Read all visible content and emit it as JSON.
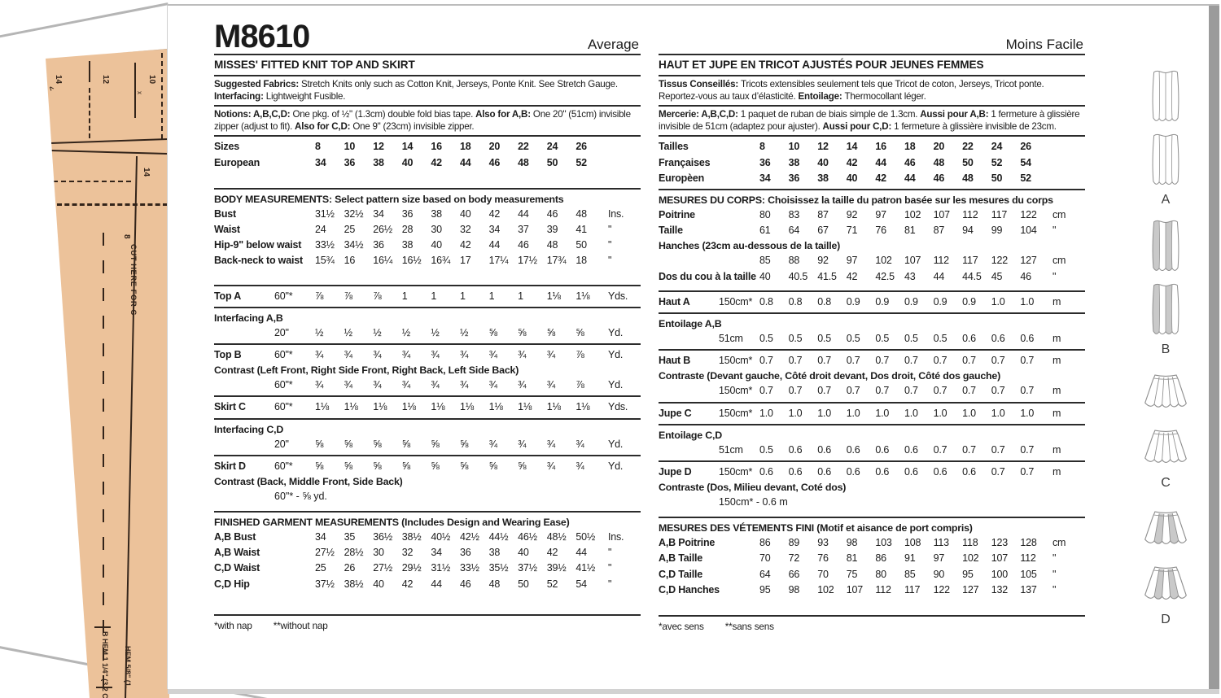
{
  "colors": {
    "tissue": "#ecc29a",
    "edge_gray": "#9b9b9b",
    "contrast_gray": "#c9c9c9",
    "ink": "#1b1b1b",
    "line_gray": "#8f8f8f"
  },
  "tissue": {
    "marks": {
      "n14a": "14",
      "n12": "12",
      "n10": "10",
      "n14b": "14",
      "n8": "8",
      "caret": "<",
      "xmark": "x"
    },
    "cut_line": "CUT HERE FOR C",
    "hem_b": "B HEM 1 1/4\" (3.2 C",
    "hem_c": "HEM 5/8\" (1."
  },
  "english": {
    "blocks": [
      {
        "t": "head",
        "big": "M8610",
        "right": "Average"
      },
      {
        "t": "rule"
      },
      {
        "t": "lbl",
        "lg": 1,
        "text": "MISSES' FITTED KNIT TOP AND SKIRT",
        "n": "garment-title-en"
      },
      {
        "t": "rule"
      },
      {
        "t": "p",
        "n": "fabrics-text-en",
        "seg": [
          [
            "b",
            "Suggested Fabrics: "
          ],
          [
            "r",
            "Stretch Knits only such as Cotton Knit, Jerseys, Ponte Knit. See Stretch Gauge."
          ],
          [
            "br"
          ],
          [
            "b",
            "Interfacing: "
          ],
          [
            "r",
            "Lightweight Fusible."
          ]
        ]
      },
      {
        "t": "rule"
      },
      {
        "t": "p",
        "n": "notions-text-en",
        "seg": [
          [
            "b",
            "Notions: A,B,C,D: "
          ],
          [
            "r",
            "One pkg. of ½\" (1.3cm) double fold bias tape. "
          ],
          [
            "b",
            "Also for A,B: "
          ],
          [
            "r",
            "One 20\" (51cm) invisible zipper (adjust to fit). "
          ],
          [
            "b",
            "Also for C,D: "
          ],
          [
            "r",
            "One 9\" (23cm) invisible zipper."
          ]
        ]
      },
      {
        "t": "rule"
      },
      {
        "t": "row",
        "span": 1,
        "bv": 1,
        "label": "Sizes",
        "vals": [
          "8",
          "10",
          "12",
          "14",
          "16",
          "18",
          "20",
          "22",
          "24",
          "26"
        ],
        "unit": ""
      },
      {
        "t": "row",
        "span": 1,
        "bv": 1,
        "label": "European",
        "vals": [
          "34",
          "36",
          "38",
          "40",
          "42",
          "44",
          "46",
          "48",
          "50",
          "52"
        ],
        "unit": ""
      },
      {
        "t": "gap",
        "h": 18
      },
      {
        "t": "rule"
      },
      {
        "t": "lbl",
        "text": "BODY MEASUREMENTS: Select pattern size based on body measurements",
        "n": "body-measurements-heading-en"
      },
      {
        "t": "row",
        "span": 1,
        "label": "Bust",
        "vals": [
          "31½",
          "32½",
          "34",
          "36",
          "38",
          "40",
          "42",
          "44",
          "46",
          "48"
        ],
        "unit": "Ins."
      },
      {
        "t": "row",
        "span": 1,
        "label": "Waist",
        "vals": [
          "24",
          "25",
          "26½",
          "28",
          "30",
          "32",
          "34",
          "37",
          "39",
          "41"
        ],
        "unit": "\""
      },
      {
        "t": "row",
        "span": 1,
        "label": "Hip-9\" below waist",
        "vals": [
          "33½",
          "34½",
          "36",
          "38",
          "40",
          "42",
          "44",
          "46",
          "48",
          "50"
        ],
        "unit": "\""
      },
      {
        "t": "row",
        "span": 1,
        "label": "Back-neck to waist",
        "vals": [
          "15¾",
          "16",
          "16¼",
          "16½",
          "16¾",
          "17",
          "17¼",
          "17½",
          "17¾",
          "18"
        ],
        "unit": "\""
      },
      {
        "t": "gap",
        "h": 16
      },
      {
        "t": "rule"
      },
      {
        "t": "row",
        "label": "Top A",
        "w": "60\"*",
        "vals": [
          "⅞",
          "⅞",
          "⅞",
          "1",
          "1",
          "1",
          "1",
          "1",
          "1⅛",
          "1⅛"
        ],
        "unit": "Yds."
      },
      {
        "t": "rule"
      },
      {
        "t": "lbl",
        "text": "Interfacing A,B"
      },
      {
        "t": "row",
        "label": "",
        "w": "20\"",
        "vals": [
          "½",
          "½",
          "½",
          "½",
          "½",
          "½",
          "⅝",
          "⅝",
          "⅝",
          "⅝"
        ],
        "unit": "Yd."
      },
      {
        "t": "rule"
      },
      {
        "t": "row",
        "label": "Top B",
        "w": "60\"*",
        "vals": [
          "¾",
          "¾",
          "¾",
          "¾",
          "¾",
          "¾",
          "¾",
          "¾",
          "¾",
          "⅞"
        ],
        "unit": "Yd."
      },
      {
        "t": "lbl",
        "text": "Contrast (Left Front, Right Side Front, Right Back, Left Side Back)"
      },
      {
        "t": "row",
        "label": "",
        "w": "60\"*",
        "vals": [
          "¾",
          "¾",
          "¾",
          "¾",
          "¾",
          "¾",
          "¾",
          "¾",
          "¾",
          "⅞"
        ],
        "unit": "Yd."
      },
      {
        "t": "rule"
      },
      {
        "t": "row",
        "label": "Skirt C",
        "w": "60\"*",
        "vals": [
          "1⅛",
          "1⅛",
          "1⅛",
          "1⅛",
          "1⅛",
          "1⅛",
          "1⅛",
          "1⅛",
          "1⅛",
          "1⅛"
        ],
        "unit": "Yds."
      },
      {
        "t": "rule"
      },
      {
        "t": "lbl",
        "text": "Interfacing C,D"
      },
      {
        "t": "row",
        "label": "",
        "w": "20\"",
        "vals": [
          "⅝",
          "⅝",
          "⅝",
          "⅝",
          "⅝",
          "⅝",
          "¾",
          "¾",
          "¾",
          "¾"
        ],
        "unit": "Yd."
      },
      {
        "t": "rule"
      },
      {
        "t": "row",
        "label": "Skirt D",
        "w": "60\"*",
        "vals": [
          "⅝",
          "⅝",
          "⅝",
          "⅝",
          "⅝",
          "⅝",
          "⅝",
          "⅝",
          "¾",
          "¾"
        ],
        "unit": "Yd."
      },
      {
        "t": "lbl",
        "text": "Contrast (Back, Middle Front, Side Back)"
      },
      {
        "t": "free",
        "text": "60\"* - ⅝ yd."
      },
      {
        "t": "gap",
        "h": 6
      },
      {
        "t": "rule"
      },
      {
        "t": "lbl",
        "text": "FINISHED GARMENT MEASUREMENTS (Includes Design and Wearing Ease)",
        "n": "finished-measurements-heading-en"
      },
      {
        "t": "row",
        "span": 1,
        "label": "A,B Bust",
        "vals": [
          "34",
          "35",
          "36½",
          "38½",
          "40½",
          "42½",
          "44½",
          "46½",
          "48½",
          "50½"
        ],
        "unit": "Ins."
      },
      {
        "t": "row",
        "span": 1,
        "label": "A,B Waist",
        "vals": [
          "27½",
          "28½",
          "30",
          "32",
          "34",
          "36",
          "38",
          "40",
          "42",
          "44"
        ],
        "unit": "\""
      },
      {
        "t": "row",
        "span": 1,
        "label": "C,D Waist",
        "vals": [
          "25",
          "26",
          "27½",
          "29½",
          "31½",
          "33½",
          "35½",
          "37½",
          "39½",
          "41½"
        ],
        "unit": "\""
      },
      {
        "t": "row",
        "span": 1,
        "label": "C,D Hip",
        "vals": [
          "37½",
          "38½",
          "40",
          "42",
          "44",
          "46",
          "48",
          "50",
          "52",
          "54"
        ],
        "unit": "\""
      },
      {
        "t": "gap",
        "h": 24
      },
      {
        "t": "rule"
      },
      {
        "t": "note",
        "parts": [
          "*with nap",
          "**without nap"
        ]
      }
    ]
  },
  "french": {
    "blocks": [
      {
        "t": "head",
        "big": "",
        "right": "Moins Facile"
      },
      {
        "t": "rule"
      },
      {
        "t": "lbl",
        "lg": 1,
        "text": "HAUT ET JUPE EN TRICOT AJUSTÉS POUR JEUNES FEMMES",
        "n": "garment-title-fr"
      },
      {
        "t": "rule"
      },
      {
        "t": "p",
        "n": "fabrics-text-fr",
        "seg": [
          [
            "b",
            "Tissus Conseillés: "
          ],
          [
            "r",
            "Tricots extensibles seulement tels que Tricot de coton, Jerseys, Tricot ponte. Reportez-vous au taux d’élasticité. "
          ],
          [
            "b",
            "Entoilage: "
          ],
          [
            "r",
            "Thermocollant léger."
          ]
        ]
      },
      {
        "t": "rule"
      },
      {
        "t": "p",
        "n": "notions-text-fr",
        "seg": [
          [
            "b",
            "Mercerie: A,B,C,D: "
          ],
          [
            "r",
            "1 paquet de ruban de biais simple de 1.3cm. "
          ],
          [
            "b",
            "Aussi pour A,B: "
          ],
          [
            "r",
            "1 fermeture à glissière invisible de 51cm (adaptez pour ajuster). "
          ],
          [
            "b",
            "Aussi pour C,D: "
          ],
          [
            "r",
            "1 fermeture à glissière invisible de 23cm."
          ]
        ]
      },
      {
        "t": "rule"
      },
      {
        "t": "row",
        "span": 1,
        "bv": 1,
        "label": "Tailles",
        "vals": [
          "8",
          "10",
          "12",
          "14",
          "16",
          "18",
          "20",
          "22",
          "24",
          "26"
        ],
        "unit": ""
      },
      {
        "t": "row",
        "span": 1,
        "bv": 1,
        "label": "Françaises",
        "vals": [
          "36",
          "38",
          "40",
          "42",
          "44",
          "46",
          "48",
          "50",
          "52",
          "54"
        ],
        "unit": ""
      },
      {
        "t": "row",
        "span": 1,
        "bv": 1,
        "label": "Europèen",
        "vals": [
          "34",
          "36",
          "38",
          "40",
          "42",
          "44",
          "46",
          "48",
          "50",
          "52"
        ],
        "unit": ""
      },
      {
        "t": "rule"
      },
      {
        "t": "lbl",
        "text": "MESURES DU CORPS: Choisissez la taille du patron basée sur les mesures du corps",
        "n": "body-measurements-heading-fr"
      },
      {
        "t": "row",
        "span": 1,
        "label": "Poitrine",
        "vals": [
          "80",
          "83",
          "87",
          "92",
          "97",
          "102",
          "107",
          "112",
          "117",
          "122"
        ],
        "unit": "cm"
      },
      {
        "t": "row",
        "span": 1,
        "label": "Taille",
        "vals": [
          "61",
          "64",
          "67",
          "71",
          "76",
          "81",
          "87",
          "94",
          "99",
          "104"
        ],
        "unit": "\""
      },
      {
        "t": "lbl",
        "text": "Hanches (23cm au-dessous de la taille)"
      },
      {
        "t": "row",
        "span": 1,
        "label": "",
        "vals": [
          "85",
          "88",
          "92",
          "97",
          "102",
          "107",
          "112",
          "117",
          "122",
          "127"
        ],
        "unit": "cm"
      },
      {
        "t": "row",
        "span": 1,
        "label": "Dos du cou à la taille",
        "vals": [
          "40",
          "40.5",
          "41.5",
          "42",
          "42.5",
          "43",
          "44",
          "44.5",
          "45",
          "46"
        ],
        "unit": "\""
      },
      {
        "t": "gap",
        "h": 4
      },
      {
        "t": "rule"
      },
      {
        "t": "row",
        "label": "Haut A",
        "w": "150cm*",
        "vals": [
          "0.8",
          "0.8",
          "0.8",
          "0.9",
          "0.9",
          "0.9",
          "0.9",
          "0.9",
          "1.0",
          "1.0"
        ],
        "unit": "m"
      },
      {
        "t": "rule"
      },
      {
        "t": "lbl",
        "text": "Entoilage A,B"
      },
      {
        "t": "row",
        "label": "",
        "w": "51cm",
        "vals": [
          "0.5",
          "0.5",
          "0.5",
          "0.5",
          "0.5",
          "0.5",
          "0.5",
          "0.6",
          "0.6",
          "0.6"
        ],
        "unit": "m"
      },
      {
        "t": "rule"
      },
      {
        "t": "row",
        "label": "Haut B",
        "w": "150cm*",
        "vals": [
          "0.7",
          "0.7",
          "0.7",
          "0.7",
          "0.7",
          "0.7",
          "0.7",
          "0.7",
          "0.7",
          "0.7"
        ],
        "unit": "m"
      },
      {
        "t": "lbl",
        "text": "Contraste (Devant gauche, Côté droit devant, Dos droit, Côté dos gauche)"
      },
      {
        "t": "row",
        "label": "",
        "w": "150cm*",
        "vals": [
          "0.7",
          "0.7",
          "0.7",
          "0.7",
          "0.7",
          "0.7",
          "0.7",
          "0.7",
          "0.7",
          "0.7"
        ],
        "unit": "m"
      },
      {
        "t": "rule"
      },
      {
        "t": "row",
        "label": "Jupe C",
        "w": "150cm*",
        "vals": [
          "1.0",
          "1.0",
          "1.0",
          "1.0",
          "1.0",
          "1.0",
          "1.0",
          "1.0",
          "1.0",
          "1.0"
        ],
        "unit": "m"
      },
      {
        "t": "rule"
      },
      {
        "t": "lbl",
        "text": "Entoilage C,D"
      },
      {
        "t": "row",
        "label": "",
        "w": "51cm",
        "vals": [
          "0.5",
          "0.6",
          "0.6",
          "0.6",
          "0.6",
          "0.6",
          "0.7",
          "0.7",
          "0.7",
          "0.7"
        ],
        "unit": "m"
      },
      {
        "t": "rule"
      },
      {
        "t": "row",
        "label": "Jupe D",
        "w": "150cm*",
        "vals": [
          "0.6",
          "0.6",
          "0.6",
          "0.6",
          "0.6",
          "0.6",
          "0.6",
          "0.6",
          "0.7",
          "0.7"
        ],
        "unit": "m"
      },
      {
        "t": "lbl",
        "text": "Contraste (Dos, Milieu devant, Coté dos)"
      },
      {
        "t": "free",
        "text": "150cm* - 0.6 m"
      },
      {
        "t": "gap",
        "h": 6
      },
      {
        "t": "rule"
      },
      {
        "t": "lbl",
        "text": "MESURES DES VÉTEMENTS FINI (Motif et aisance de port compris)",
        "n": "finished-measurements-heading-fr"
      },
      {
        "t": "row",
        "span": 1,
        "label": "A,B Poitrine",
        "vals": [
          "86",
          "89",
          "93",
          "98",
          "103",
          "108",
          "113",
          "118",
          "123",
          "128"
        ],
        "unit": "cm"
      },
      {
        "t": "row",
        "span": 1,
        "label": "A,B Taille",
        "vals": [
          "70",
          "72",
          "76",
          "81",
          "86",
          "91",
          "97",
          "102",
          "107",
          "112"
        ],
        "unit": "\""
      },
      {
        "t": "row",
        "span": 1,
        "label": "C,D Taille",
        "vals": [
          "64",
          "66",
          "70",
          "75",
          "80",
          "85",
          "90",
          "95",
          "100",
          "105"
        ],
        "unit": "\""
      },
      {
        "t": "row",
        "span": 1,
        "label": "C,D Hanches",
        "vals": [
          "95",
          "98",
          "102",
          "107",
          "112",
          "117",
          "122",
          "127",
          "132",
          "137"
        ],
        "unit": "\""
      },
      {
        "t": "gap",
        "h": 18
      },
      {
        "t": "rule"
      },
      {
        "t": "note",
        "parts": [
          "*avec sens",
          "**sans sens"
        ]
      }
    ]
  },
  "views": [
    {
      "letter": "A",
      "type": "top",
      "contrast": false
    },
    {
      "letter": "B",
      "type": "top",
      "contrast": true
    },
    {
      "letter": "C",
      "type": "skirt",
      "contrast": false
    },
    {
      "letter": "D",
      "type": "skirt",
      "contrast": true
    }
  ]
}
